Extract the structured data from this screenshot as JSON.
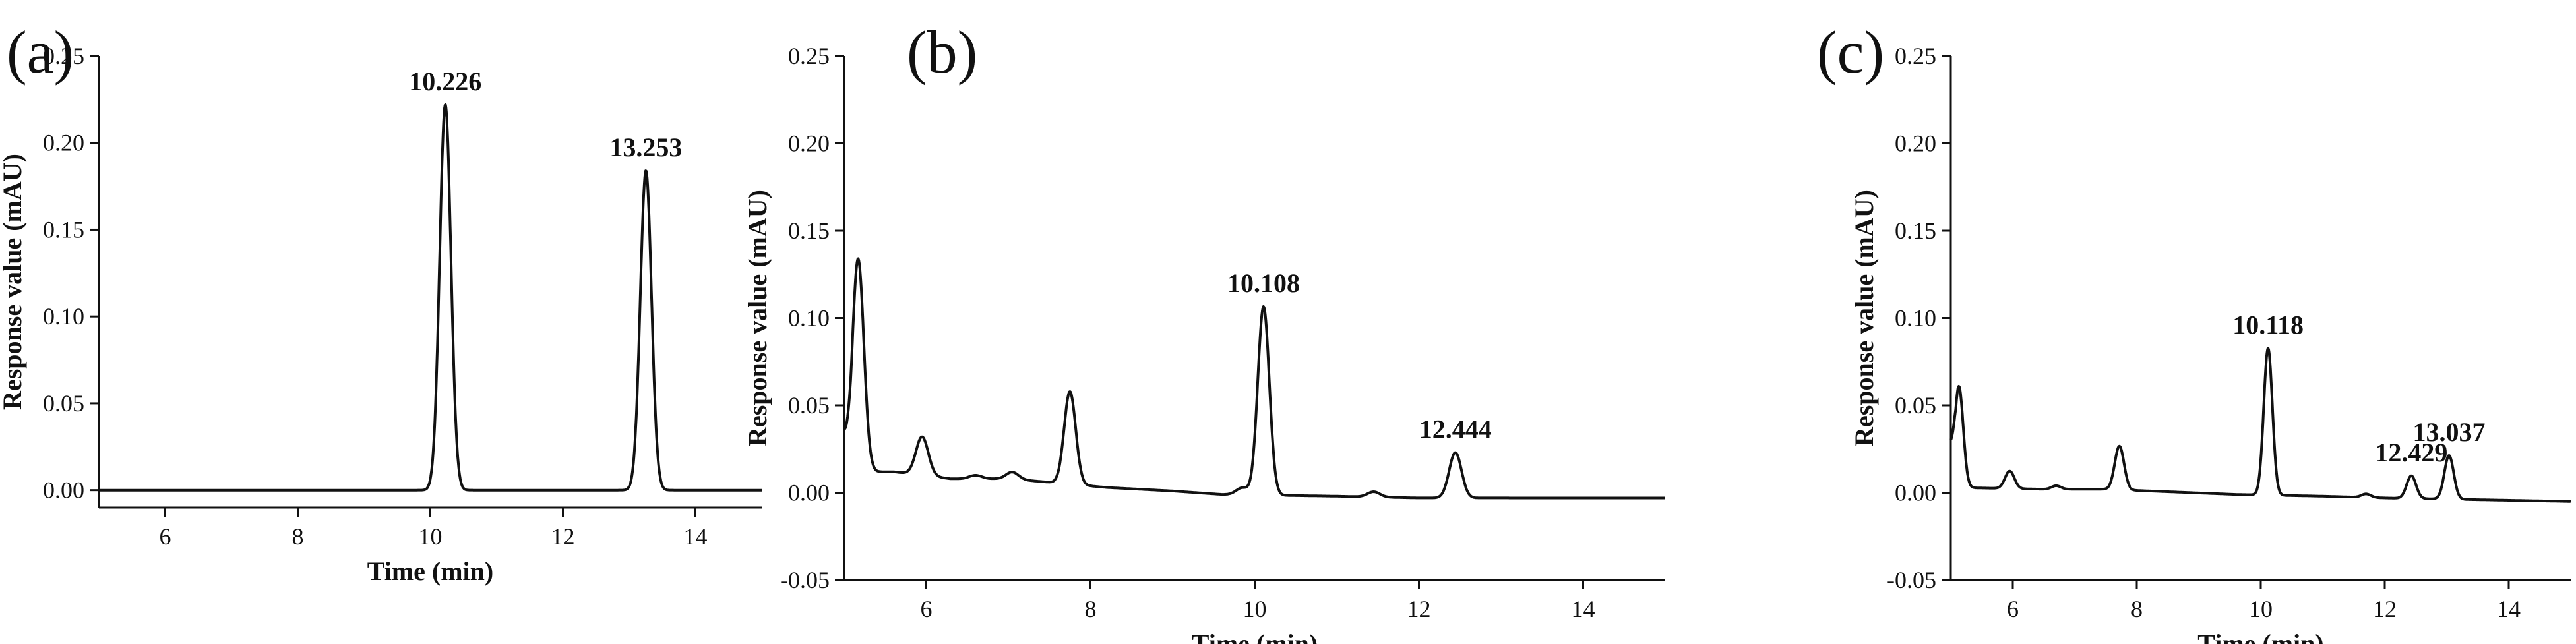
{
  "chart_data": [
    {
      "type": "line",
      "panel_label": "(a)",
      "xlabel": "Time (min)",
      "ylabel": "Response value (mAU)",
      "xlim": [
        5,
        15
      ],
      "ylim": [
        -0.01,
        0.25
      ],
      "x_ticks": [
        6,
        8,
        10,
        12,
        14
      ],
      "y_ticks": [
        0.0,
        0.05,
        0.1,
        0.15,
        0.2,
        0.25
      ],
      "y_tick_labels": [
        "0.00",
        "0.05",
        "0.10",
        "0.15",
        "0.20",
        "0.25"
      ],
      "grid": false,
      "baseline": [
        [
          5,
          0.0
        ],
        [
          15,
          0.0
        ]
      ],
      "peaks": [
        {
          "time": 10.226,
          "height": 0.222,
          "label": "10.226"
        },
        {
          "time": 13.253,
          "height": 0.184,
          "label": "13.253"
        }
      ]
    },
    {
      "type": "line",
      "panel_label": "(b)",
      "xlabel": "Time (min)",
      "ylabel": "Response value (mAU)",
      "xlim": [
        5,
        15
      ],
      "ylim": [
        -0.05,
        0.25
      ],
      "x_ticks": [
        6,
        8,
        10,
        12,
        14
      ],
      "y_ticks": [
        -0.05,
        0.0,
        0.05,
        0.1,
        0.15,
        0.2,
        0.25
      ],
      "y_tick_labels": [
        "-0.05",
        "0.00",
        "0.05",
        "0.10",
        "0.15",
        "0.20",
        "0.25"
      ],
      "grid": false,
      "baseline": [
        [
          5.0,
          0.03
        ],
        [
          5.08,
          0.012
        ],
        [
          5.6,
          0.012
        ],
        [
          6.3,
          0.008
        ],
        [
          7.0,
          0.008
        ],
        [
          7.5,
          0.006
        ],
        [
          8.2,
          0.003
        ],
        [
          9.0,
          0.001
        ],
        [
          9.6,
          -0.001
        ],
        [
          11.0,
          -0.002
        ],
        [
          12.0,
          -0.003
        ],
        [
          13.0,
          -0.003
        ],
        [
          15.0,
          -0.003
        ]
      ],
      "peaks": [
        {
          "time": 5.17,
          "height": 0.122
        },
        {
          "time": 5.95,
          "height": 0.022
        },
        {
          "time": 6.6,
          "height": 0.002
        },
        {
          "time": 7.05,
          "height": 0.004
        },
        {
          "time": 7.75,
          "height": 0.053
        },
        {
          "time": 9.85,
          "height": 0.004
        },
        {
          "time": 10.108,
          "height": 0.108,
          "label": "10.108"
        },
        {
          "time": 11.45,
          "height": 0.003
        },
        {
          "time": 12.444,
          "height": 0.026,
          "label": "12.444"
        }
      ]
    },
    {
      "type": "line",
      "panel_label": "(c)",
      "xlabel": "Time (min)",
      "ylabel": "Response value (mAU)",
      "xlim": [
        5,
        15
      ],
      "ylim": [
        -0.05,
        0.25
      ],
      "x_ticks": [
        6,
        8,
        10,
        12,
        14
      ],
      "y_ticks": [
        -0.05,
        0.0,
        0.05,
        0.1,
        0.15,
        0.2,
        0.25
      ],
      "y_tick_labels": [
        "-0.05",
        "0.00",
        "0.05",
        "0.10",
        "0.15",
        "0.20",
        "0.25"
      ],
      "grid": false,
      "baseline": [
        [
          5.0,
          0.02
        ],
        [
          5.08,
          0.003
        ],
        [
          6.5,
          0.002
        ],
        [
          7.5,
          0.002
        ],
        [
          8.2,
          0.001
        ],
        [
          9.6,
          -0.001
        ],
        [
          11.0,
          -0.002
        ],
        [
          12.0,
          -0.003
        ],
        [
          13.5,
          -0.004
        ],
        [
          15.0,
          -0.005
        ]
      ],
      "peaks": [
        {
          "time": 5.13,
          "height": 0.058
        },
        {
          "time": 5.95,
          "height": 0.01
        },
        {
          "time": 6.7,
          "height": 0.002
        },
        {
          "time": 7.72,
          "height": 0.025
        },
        {
          "time": 10.118,
          "height": 0.084,
          "label": "10.118"
        },
        {
          "time": 11.7,
          "height": 0.002
        },
        {
          "time": 12.429,
          "height": 0.013,
          "label": "12.429"
        },
        {
          "time": 13.037,
          "height": 0.025,
          "label": "13.037"
        }
      ]
    }
  ]
}
